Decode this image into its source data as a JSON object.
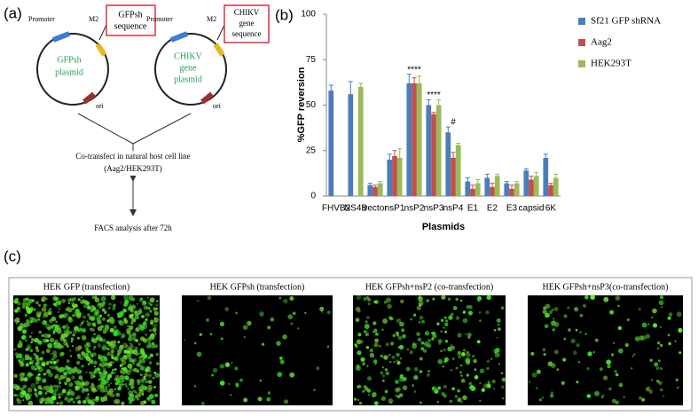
{
  "panel_labels": [
    "(a)",
    "(b)",
    "(c)"
  ],
  "diagram": {
    "left_plasmid": {
      "promoter": "Promoter",
      "site": "M2",
      "insert": [
        "GFPsh",
        "sequence"
      ],
      "name": [
        "GFPsh",
        "plasmid"
      ],
      "ori": "ori"
    },
    "right_plasmid": {
      "promoter": "Promoter",
      "site": "M2",
      "insert": [
        "CHIKV",
        "gene",
        "sequence"
      ],
      "name": [
        "CHIKV",
        "gene",
        "plasmid"
      ],
      "ori": "ori"
    },
    "step1": [
      "Co-transfect in natural host cell line",
      "(Aag2/HEK293T)"
    ],
    "step2": "FACS analysis after 72h"
  },
  "chart_data": {
    "type": "bar",
    "ylabel": "%GFP reversion",
    "xlabel": "Plasmids",
    "categories": [
      "FHVB2",
      "NS4B",
      "vector",
      "nsP1",
      "nsP2",
      "nsP3",
      "nsP4",
      "E1",
      "E2",
      "E3",
      "capsid",
      "6K"
    ],
    "series": [
      {
        "name": "Sf21 GFP shRNA",
        "color": "#4a7ebb",
        "values": [
          58,
          56,
          6,
          20,
          62,
          50,
          35,
          8,
          10,
          7,
          14,
          21
        ],
        "errors": [
          3,
          7,
          1,
          3,
          5,
          3,
          3,
          2,
          2,
          1,
          1,
          2
        ]
      },
      {
        "name": "Aag2",
        "color": "#c0504d",
        "values": [
          null,
          null,
          5,
          22,
          62,
          45,
          21,
          4,
          5,
          4,
          9,
          6
        ],
        "errors": [
          null,
          null,
          1,
          3,
          3,
          1,
          3,
          2,
          2,
          2,
          2,
          1
        ]
      },
      {
        "name": "HEK293T",
        "color": "#9bbb59",
        "values": [
          null,
          60,
          7,
          21,
          62,
          50,
          28,
          7,
          11,
          7,
          11,
          10
        ],
        "errors": [
          null,
          2,
          1,
          5,
          4,
          3,
          1,
          2,
          1,
          1,
          2,
          2
        ]
      }
    ],
    "annotations": [
      {
        "category": "nsP2",
        "text": "****"
      },
      {
        "category": "nsP3",
        "text": "****"
      },
      {
        "category": "nsP4",
        "text": "#"
      }
    ],
    "ylim": [
      0,
      100
    ],
    "yticks": [
      0,
      25,
      50,
      75,
      100
    ],
    "grid": false,
    "legend": "right"
  },
  "images": [
    {
      "label": "HEK GFP (transfection)"
    },
    {
      "label": "HEK GFPsh (transfection)"
    },
    {
      "label": "HEK GFPsh+nsP2 (co-transfection)"
    },
    {
      "label": "HEK GFPsh+nsP3(co-transfection)"
    }
  ]
}
